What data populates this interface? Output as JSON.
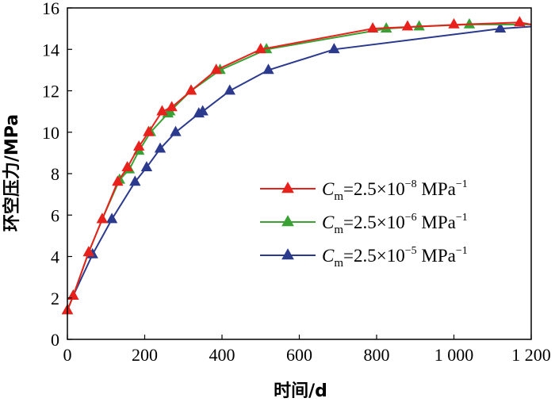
{
  "chart_data": {
    "type": "line",
    "title": "",
    "xlabel": "时间/d",
    "ylabel": "环空压力/MPa",
    "xlim": [
      0,
      1200
    ],
    "ylim": [
      0,
      16
    ],
    "x_ticks": [
      {
        "value": 0,
        "label": "0"
      },
      {
        "value": 200,
        "label": "200"
      },
      {
        "value": 400,
        "label": "400"
      },
      {
        "value": 600,
        "label": "600"
      },
      {
        "value": 800,
        "label": "800"
      },
      {
        "value": 1000,
        "label": "1 000"
      },
      {
        "value": 1200,
        "label": "1 200"
      }
    ],
    "y_ticks": [
      {
        "value": 0,
        "label": "0"
      },
      {
        "value": 2,
        "label": "2"
      },
      {
        "value": 4,
        "label": "4"
      },
      {
        "value": 6,
        "label": "6"
      },
      {
        "value": 8,
        "label": "8"
      },
      {
        "value": 10,
        "label": "10"
      },
      {
        "value": 12,
        "label": "12"
      },
      {
        "value": 14,
        "label": "14"
      },
      {
        "value": 16,
        "label": "16"
      }
    ],
    "grid": false,
    "legend_position": "right",
    "series": [
      {
        "name": "Cm=2.5×10^-8 MPa^-1",
        "legend": {
          "C": "C",
          "sub": "m",
          "eq": "=2.5×10",
          "exp": "−8",
          "unit": " MPa",
          "unit_exp": "−1"
        },
        "color": "#e8211c",
        "marker": "triangle",
        "points": [
          [
            0,
            1.4
          ],
          [
            15,
            2.1
          ],
          [
            55,
            4.2
          ],
          [
            90,
            5.8
          ],
          [
            130,
            7.6
          ],
          [
            155,
            8.3
          ],
          [
            185,
            9.3
          ],
          [
            210,
            10.0
          ],
          [
            245,
            11.0
          ],
          [
            270,
            11.2
          ],
          [
            320,
            12.0
          ],
          [
            385,
            13.0
          ],
          [
            500,
            14.0
          ],
          [
            790,
            15.0
          ],
          [
            1020,
            15.2
          ],
          [
            1170,
            15.3
          ],
          [
            1200,
            15.2
          ]
        ],
        "marker_points": [
          [
            0,
            1.4
          ],
          [
            15,
            2.1
          ],
          [
            55,
            4.2
          ],
          [
            90,
            5.8
          ],
          [
            130,
            7.6
          ],
          [
            155,
            8.3
          ],
          [
            185,
            9.3
          ],
          [
            210,
            10.0
          ],
          [
            245,
            11.0
          ],
          [
            270,
            11.2
          ],
          [
            320,
            12.0
          ],
          [
            385,
            13.0
          ],
          [
            500,
            14.0
          ],
          [
            790,
            15.0
          ],
          [
            880,
            15.1
          ],
          [
            1000,
            15.2
          ],
          [
            1170,
            15.3
          ]
        ]
      },
      {
        "name": "Cm=2.5×10^-6 MPa^-1",
        "legend": {
          "C": "C",
          "sub": "m",
          "eq": "=2.5×10",
          "exp": "−6",
          "unit": " MPa",
          "unit_exp": "−1"
        },
        "color": "#3aa135",
        "marker": "triangle",
        "points": [
          [
            0,
            1.4
          ],
          [
            15,
            2.1
          ],
          [
            55,
            4.2
          ],
          [
            90,
            5.8
          ],
          [
            135,
            7.7
          ],
          [
            160,
            8.2
          ],
          [
            185,
            9.1
          ],
          [
            215,
            10.0
          ],
          [
            260,
            10.9
          ],
          [
            265,
            11.0
          ],
          [
            320,
            12.0
          ],
          [
            395,
            13.0
          ],
          [
            515,
            14.0
          ],
          [
            825,
            15.0
          ],
          [
            910,
            15.1
          ],
          [
            1040,
            15.2
          ],
          [
            1200,
            15.2
          ]
        ],
        "marker_points": [
          [
            0,
            1.4
          ],
          [
            15,
            2.1
          ],
          [
            55,
            4.2
          ],
          [
            90,
            5.8
          ],
          [
            135,
            7.7
          ],
          [
            160,
            8.2
          ],
          [
            185,
            9.1
          ],
          [
            215,
            10.0
          ],
          [
            260,
            10.9
          ],
          [
            265,
            11.0
          ],
          [
            320,
            12.0
          ],
          [
            395,
            13.0
          ],
          [
            515,
            14.0
          ],
          [
            825,
            15.0
          ],
          [
            910,
            15.1
          ],
          [
            1040,
            15.2
          ]
        ]
      },
      {
        "name": "Cm=2.5×10^-5 MPa^-1",
        "legend": {
          "C": "C",
          "sub": "m",
          "eq": "=2.5×10",
          "exp": "−5",
          "unit": " MPa",
          "unit_exp": "−1"
        },
        "color": "#2c3a8e",
        "marker": "triangle",
        "points": [
          [
            0,
            1.4
          ],
          [
            15,
            2.1
          ],
          [
            65,
            4.1
          ],
          [
            115,
            5.8
          ],
          [
            175,
            7.6
          ],
          [
            205,
            8.3
          ],
          [
            240,
            9.2
          ],
          [
            280,
            10.0
          ],
          [
            340,
            10.9
          ],
          [
            350,
            11.0
          ],
          [
            420,
            12.0
          ],
          [
            520,
            13.0
          ],
          [
            690,
            14.0
          ],
          [
            1120,
            15.0
          ],
          [
            1200,
            15.1
          ]
        ],
        "marker_points": [
          [
            0,
            1.4
          ],
          [
            15,
            2.1
          ],
          [
            65,
            4.1
          ],
          [
            115,
            5.8
          ],
          [
            175,
            7.6
          ],
          [
            205,
            8.3
          ],
          [
            240,
            9.2
          ],
          [
            280,
            10.0
          ],
          [
            340,
            10.9
          ],
          [
            350,
            11.0
          ],
          [
            420,
            12.0
          ],
          [
            520,
            13.0
          ],
          [
            690,
            14.0
          ],
          [
            1120,
            15.0
          ]
        ]
      }
    ]
  }
}
